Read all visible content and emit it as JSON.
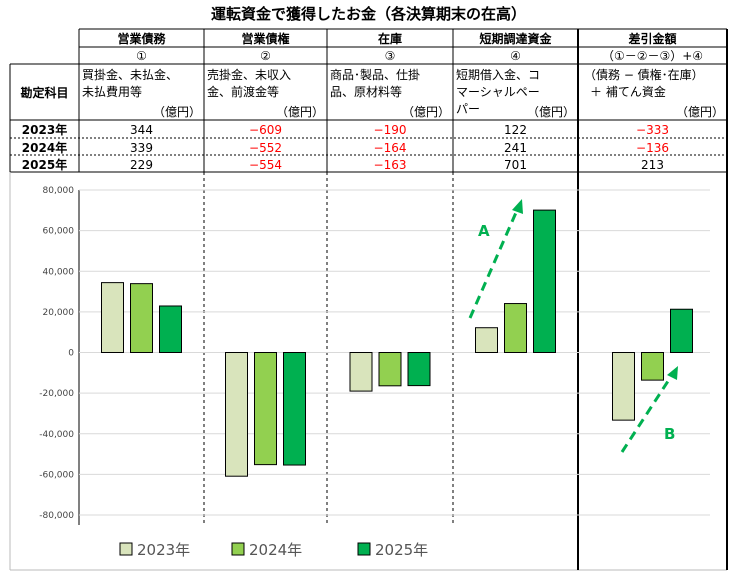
{
  "title": "運転資金で獲得したお金（各決算期末の在高）",
  "table": {
    "row_header": "勘定科目",
    "columns": [
      {
        "name": "営業債務",
        "mark": "①",
        "desc": [
          "買掛金、未払金、",
          "未払費用等"
        ],
        "unit": "（億円）"
      },
      {
        "name": "営業債権",
        "mark": "②",
        "desc": [
          "売掛金、未収入",
          "金、前渡金等"
        ],
        "unit": "（億円）"
      },
      {
        "name": "在庫",
        "mark": "③",
        "desc": [
          "商品･製品、仕掛",
          "品、原材料等"
        ],
        "unit": "（億円）"
      },
      {
        "name": "短期調達資金",
        "mark": "④",
        "desc": [
          "短期借入金、コ",
          "マーシャルペー",
          "パー"
        ],
        "unit": "（億円）"
      },
      {
        "name": "差引金額",
        "mark": "（①－②－③）+④",
        "desc": [
          "（債務 − 債権･在庫）",
          "＋ 補てん資金"
        ],
        "unit": "（億円）"
      }
    ],
    "rows": [
      {
        "year": "2023年",
        "values": [
          "344",
          "−609",
          "−190",
          "122",
          "−333"
        ]
      },
      {
        "year": "2024年",
        "values": [
          "339",
          "−552",
          "−164",
          "241",
          "−136"
        ]
      },
      {
        "year": "2025年",
        "values": [
          "229",
          "−554",
          "−163",
          "701",
          "213"
        ]
      }
    ]
  },
  "chart_data": {
    "type": "bar",
    "categories": [
      "営業債務",
      "営業債権",
      "在庫",
      "短期調達資金",
      "差引金額"
    ],
    "series": [
      {
        "name": "2023年",
        "values": [
          34400,
          -60900,
          -19000,
          12200,
          -33300
        ],
        "color": "#d9e4bc"
      },
      {
        "name": "2024年",
        "values": [
          33900,
          -55200,
          -16400,
          24100,
          -13600
        ],
        "color": "#92d050"
      },
      {
        "name": "2025年",
        "values": [
          22900,
          -55400,
          -16300,
          70100,
          21300
        ],
        "color": "#00b050"
      }
    ],
    "ylim": [
      -80000,
      80000
    ],
    "yticks": [
      "80,000",
      "60,000",
      "40,000",
      "20,000",
      "0",
      "-20,000",
      "-40,000",
      "-60,000",
      "-80,000"
    ],
    "grid": true,
    "legend": "bottom",
    "annotations": [
      {
        "text": "A",
        "color": "#00b050"
      },
      {
        "text": "B",
        "color": "#00b050"
      }
    ]
  }
}
